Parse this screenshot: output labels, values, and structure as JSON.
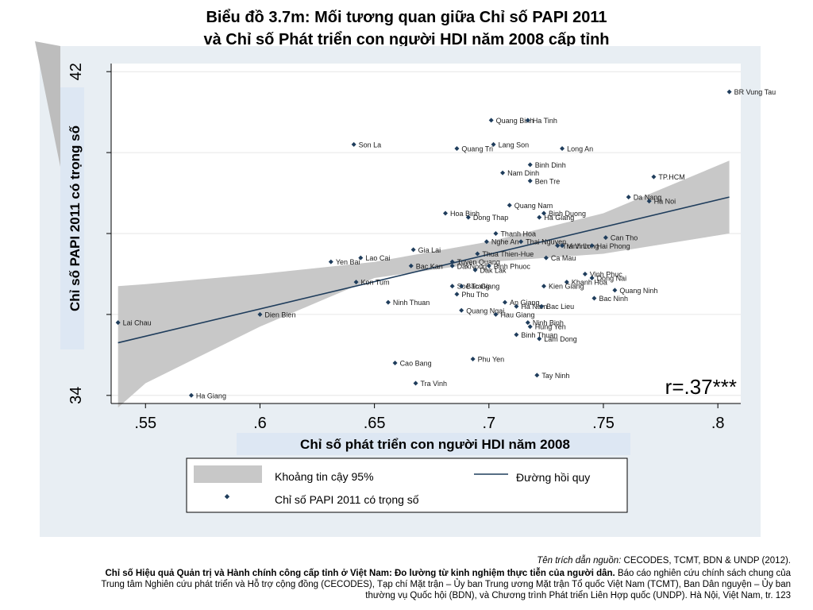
{
  "title_line1": "Biểu đồ 3.7m: Mối tương quan giữa Chỉ số PAPI 2011",
  "title_line2": "và Chỉ số Phát triển con người HDI năm 2008 cấp tỉnh",
  "source": {
    "label": "Tên trích dẫn nguồn:",
    "orgs": "CECODES, TCMT, BDN & UNDP (2012).",
    "bold_title": "Chỉ số Hiệu quả Quản trị và Hành chính công cấp tỉnh ở Việt Nam: Đo lường từ kinh nghiệm thực tiễn của người dân.",
    "rest1": "Báo cáo nghiên cứu chính sách chung của",
    "line3": "Trung tâm Nghiên cứu phát triển và Hỗ trợ cộng đồng (CECODES), Tạp chí Mặt trận – Ủy ban Trung ương Mặt trận Tổ quốc Việt Nam (TCMT), Ban Dân nguyện – Ủy ban",
    "line4": "thường vụ Quốc hội (BDN), và Chương trình Phát triển Liên Hợp quốc (UNDP). Hà Nội, Việt Nam, tr. 123"
  },
  "colors": {
    "points": "#1f3d5c",
    "regression": "#1f3d5c",
    "ci": "#c8c8c8",
    "panel": "#e8eef3"
  },
  "chart_data": {
    "type": "scatter",
    "xlabel": "Chỉ số phát triển con người HDI năm 2008",
    "ylabel": "Chỉ số PAPI 2011 có trọng số",
    "xlim": [
      0.535,
      0.81
    ],
    "ylim": [
      33.8,
      42.2
    ],
    "x_ticks": [
      0.55,
      0.6,
      0.65,
      0.7,
      0.75,
      0.8
    ],
    "x_tick_labels": [
      ".55",
      ".6",
      ".65",
      ".7",
      ".75",
      ".8"
    ],
    "y_ticks": [
      34,
      42
    ],
    "y_tick_labels": [
      "34",
      "42"
    ],
    "y_gridlines": [
      34,
      36,
      38,
      40,
      42
    ],
    "grid": true,
    "annotation": "r=.37***",
    "regression_line": {
      "x": [
        0.538,
        0.805
      ],
      "y": [
        35.3,
        38.9
      ]
    },
    "confidence_band": {
      "x": [
        0.538,
        0.55,
        0.6,
        0.65,
        0.7,
        0.75,
        0.805
      ],
      "upper": [
        36.7,
        36.75,
        37.0,
        37.3,
        37.8,
        38.5,
        39.8
      ],
      "lower": [
        33.7,
        34.3,
        35.7,
        36.9,
        37.3,
        37.5,
        38.0
      ]
    },
    "legend": {
      "position": "bottom",
      "ci_label": "Khoảng tin cậy 95%",
      "line_label": "Đường hồi quy",
      "point_label": "Chỉ số PAPI 2011 có trọng số"
    },
    "points": [
      {
        "name": "BR Vung Tau",
        "x": 0.805,
        "y": 41.5
      },
      {
        "name": "Quang Binh",
        "x": 0.701,
        "y": 40.8
      },
      {
        "name": "Ha Tinh",
        "x": 0.717,
        "y": 40.8
      },
      {
        "name": "Son La",
        "x": 0.641,
        "y": 40.2
      },
      {
        "name": "Lang Son",
        "x": 0.702,
        "y": 40.2
      },
      {
        "name": "Quang Tri",
        "x": 0.686,
        "y": 40.1
      },
      {
        "name": "Long An",
        "x": 0.732,
        "y": 40.1
      },
      {
        "name": "Binh Dinh",
        "x": 0.718,
        "y": 39.7
      },
      {
        "name": "Nam Dinh",
        "x": 0.706,
        "y": 39.5
      },
      {
        "name": "Ben Tre",
        "x": 0.718,
        "y": 39.3
      },
      {
        "name": "TP.HCM",
        "x": 0.772,
        "y": 39.4
      },
      {
        "name": "Da Nang",
        "x": 0.761,
        "y": 38.9
      },
      {
        "name": "Ha Noi",
        "x": 0.77,
        "y": 38.8
      },
      {
        "name": "Quang Nam",
        "x": 0.709,
        "y": 38.7
      },
      {
        "name": "Hoa Binh",
        "x": 0.681,
        "y": 38.5
      },
      {
        "name": "Dong Thap",
        "x": 0.691,
        "y": 38.4
      },
      {
        "name": "Binh Duong",
        "x": 0.724,
        "y": 38.5
      },
      {
        "name": "Ha Giang",
        "x": 0.722,
        "y": 38.4
      },
      {
        "name": "Thanh Hoa",
        "x": 0.703,
        "y": 38.0
      },
      {
        "name": "Can Tho",
        "x": 0.751,
        "y": 37.9
      },
      {
        "name": "Nghe An",
        "x": 0.699,
        "y": 37.8
      },
      {
        "name": "Thai Nguyen",
        "x": 0.714,
        "y": 37.8
      },
      {
        "name": "Gia Lai",
        "x": 0.667,
        "y": 37.6
      },
      {
        "name": "Thua Thien-Hue",
        "x": 0.695,
        "y": 37.5
      },
      {
        "name": "Tra Vinh",
        "x": 0.73,
        "y": 37.7
      },
      {
        "name": "Vinh Long",
        "x": 0.732,
        "y": 37.7
      },
      {
        "name": "Hai Phong",
        "x": 0.745,
        "y": 37.7
      },
      {
        "name": "Lao Cai",
        "x": 0.644,
        "y": 37.4
      },
      {
        "name": "Yen Bai",
        "x": 0.631,
        "y": 37.3
      },
      {
        "name": "Tuyen Quang",
        "x": 0.684,
        "y": 37.3
      },
      {
        "name": "Ca Mau",
        "x": 0.725,
        "y": 37.4
      },
      {
        "name": "Bac Kan",
        "x": 0.666,
        "y": 37.2
      },
      {
        "name": "DakNong",
        "x": 0.684,
        "y": 37.2
      },
      {
        "name": "Dak Lak",
        "x": 0.694,
        "y": 37.1
      },
      {
        "name": "Binh Phuoc",
        "x": 0.7,
        "y": 37.2
      },
      {
        "name": "Vinh Phuc",
        "x": 0.742,
        "y": 37.0
      },
      {
        "name": "Dong Nai",
        "x": 0.745,
        "y": 36.9
      },
      {
        "name": "Khanh Hoa",
        "x": 0.734,
        "y": 36.8
      },
      {
        "name": "Kon Tum",
        "x": 0.642,
        "y": 36.8
      },
      {
        "name": "Soc Trang",
        "x": 0.684,
        "y": 36.7
      },
      {
        "name": "Bac Giang",
        "x": 0.688,
        "y": 36.7
      },
      {
        "name": "Kien Giang",
        "x": 0.724,
        "y": 36.7
      },
      {
        "name": "Quang Ninh",
        "x": 0.755,
        "y": 36.6
      },
      {
        "name": "Phu Tho",
        "x": 0.686,
        "y": 36.5
      },
      {
        "name": "Bac Ninh",
        "x": 0.746,
        "y": 36.4
      },
      {
        "name": "Ninh Thuan",
        "x": 0.656,
        "y": 36.3
      },
      {
        "name": "An Giang",
        "x": 0.707,
        "y": 36.3
      },
      {
        "name": "Ha Nam",
        "x": 0.712,
        "y": 36.2
      },
      {
        "name": "Bac Lieu",
        "x": 0.723,
        "y": 36.2
      },
      {
        "name": "Dien Bien",
        "x": 0.6,
        "y": 36.0
      },
      {
        "name": "Quang Ngai",
        "x": 0.688,
        "y": 36.1
      },
      {
        "name": "Hau Giang",
        "x": 0.703,
        "y": 36.0
      },
      {
        "name": "Lai Chau",
        "x": 0.538,
        "y": 35.8
      },
      {
        "name": "Ninh Binh",
        "x": 0.717,
        "y": 35.8
      },
      {
        "name": "Hung Yen",
        "x": 0.718,
        "y": 35.7
      },
      {
        "name": "Binh Thuan",
        "x": 0.712,
        "y": 35.5
      },
      {
        "name": "Lam Dong",
        "x": 0.722,
        "y": 35.4
      },
      {
        "name": "Phu Yen",
        "x": 0.693,
        "y": 34.9
      },
      {
        "name": "Cao Bang",
        "x": 0.659,
        "y": 34.8
      },
      {
        "name": "Tay Ninh",
        "x": 0.721,
        "y": 34.5
      },
      {
        "name": "Tra Vinh",
        "x": 0.668,
        "y": 34.3
      },
      {
        "name": "Ha Giang",
        "x": 0.57,
        "y": 34.0
      }
    ]
  }
}
